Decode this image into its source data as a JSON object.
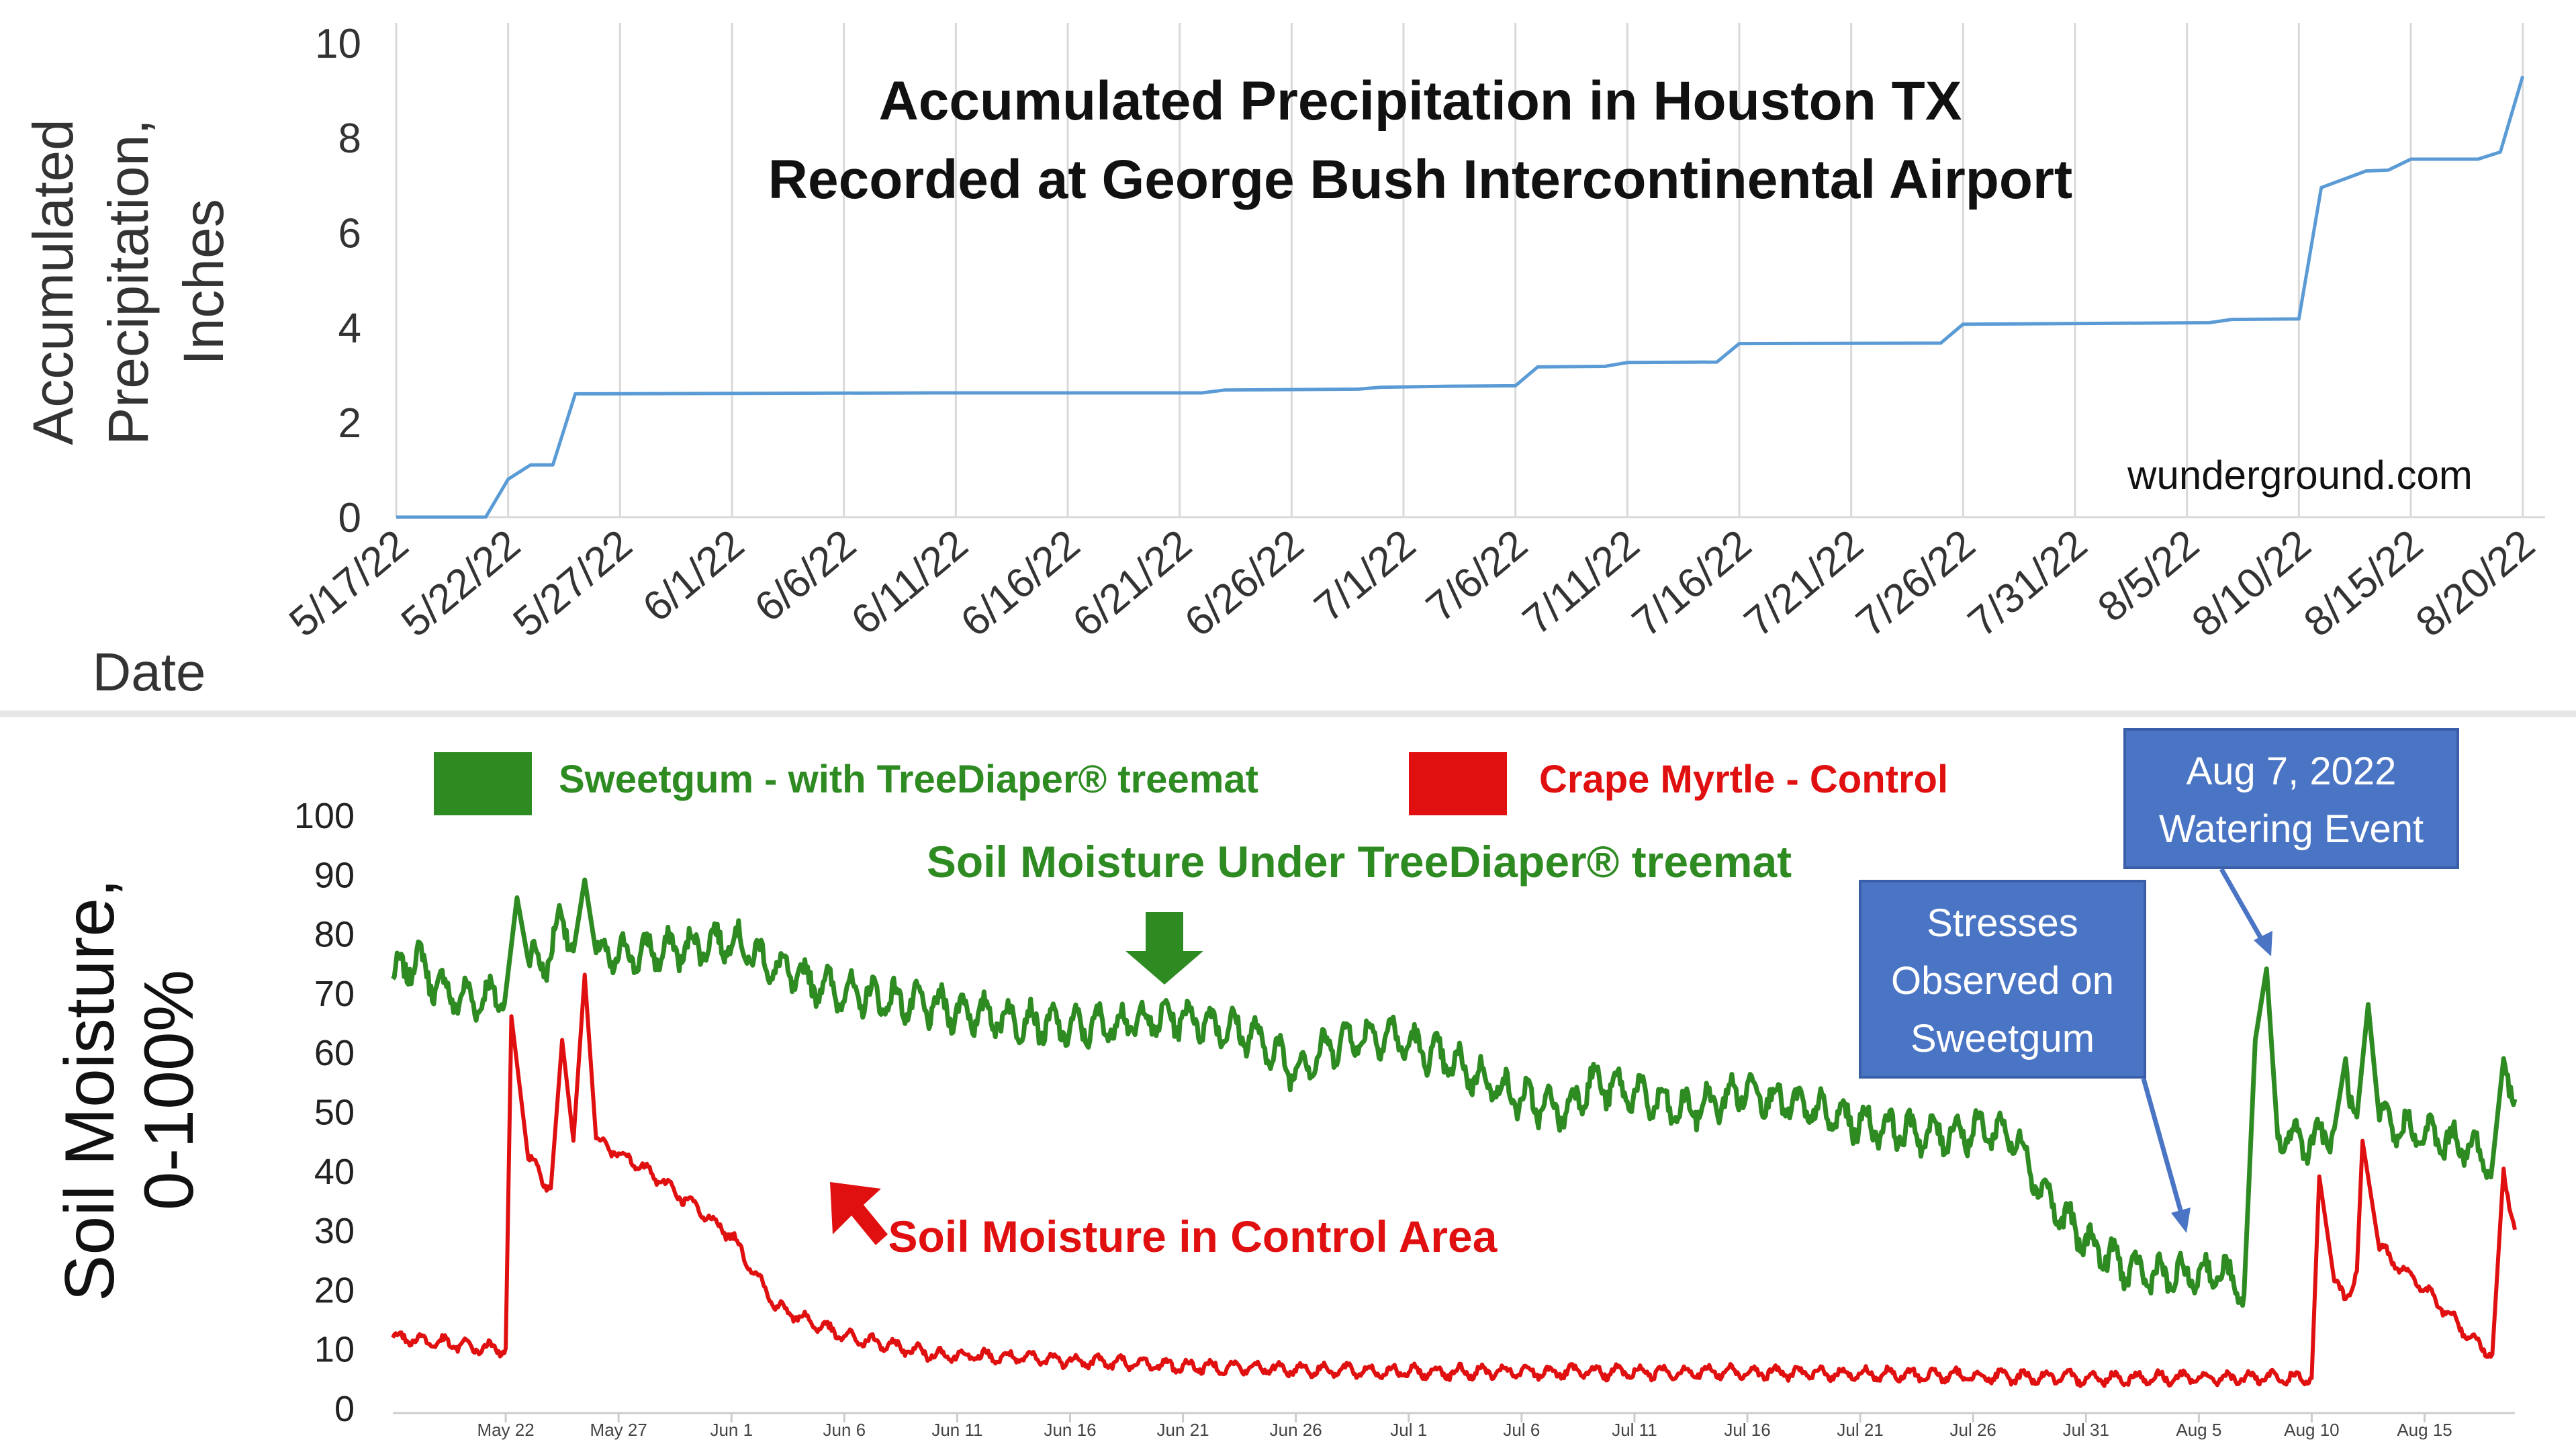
{
  "chart_data": [
    {
      "type": "line",
      "title_lines": [
        "Accumulated Precipitation in Houston TX",
        "Recorded at George Bush Intercontinental Airport"
      ],
      "ylabel_lines": [
        "Accumulated",
        "Precipitation,",
        "Inches"
      ],
      "xlabel": "Date",
      "source": "wunderground.com",
      "ylim": [
        0,
        10
      ],
      "yticks": [
        0,
        2,
        4,
        6,
        8,
        10
      ],
      "xlim": [
        "2022-05-17",
        "2022-08-21"
      ],
      "xtick_labels": [
        "5/17/22",
        "5/22/22",
        "5/27/22",
        "6/1/22",
        "6/6/22",
        "6/11/22",
        "6/16/22",
        "6/21/22",
        "6/26/22",
        "7/1/22",
        "7/6/22",
        "7/11/22",
        "7/16/22",
        "7/21/22",
        "7/26/22",
        "7/31/22",
        "8/5/22",
        "8/10/22",
        "8/15/22",
        "8/20/22"
      ],
      "grid": "vertical",
      "color": "#5b9bd5",
      "series": [
        {
          "points": [
            [
              "2022-05-17",
              0.0
            ],
            [
              "2022-05-21",
              0.0
            ],
            [
              "2022-05-22",
              0.8
            ],
            [
              "2022-05-23",
              1.1
            ],
            [
              "2022-05-24",
              1.1
            ],
            [
              "2022-05-25",
              2.6
            ],
            [
              "2022-06-10",
              2.62
            ],
            [
              "2022-06-22",
              2.62
            ],
            [
              "2022-06-23",
              2.68
            ],
            [
              "2022-06-29",
              2.7
            ],
            [
              "2022-06-30",
              2.74
            ],
            [
              "2022-07-03",
              2.76
            ],
            [
              "2022-07-06",
              2.77
            ],
            [
              "2022-07-07",
              3.17
            ],
            [
              "2022-07-10",
              3.18
            ],
            [
              "2022-07-11",
              3.26
            ],
            [
              "2022-07-15",
              3.27
            ],
            [
              "2022-07-16",
              3.66
            ],
            [
              "2022-07-25",
              3.67
            ],
            [
              "2022-07-26",
              4.07
            ],
            [
              "2022-08-06",
              4.1
            ],
            [
              "2022-08-07",
              4.17
            ],
            [
              "2022-08-10",
              4.18
            ],
            [
              "2022-08-11",
              6.95
            ],
            [
              "2022-08-13",
              7.3
            ],
            [
              "2022-08-14",
              7.32
            ],
            [
              "2022-08-15",
              7.55
            ],
            [
              "2022-08-18",
              7.55
            ],
            [
              "2022-08-19",
              7.7
            ],
            [
              "2022-08-20",
              9.3
            ]
          ]
        }
      ]
    },
    {
      "type": "line",
      "ylabel_lines": [
        "Soil Moisture,",
        "0-100%"
      ],
      "ylim": [
        0,
        100
      ],
      "yticks": [
        0,
        10,
        20,
        30,
        40,
        50,
        60,
        70,
        80,
        90,
        100
      ],
      "xlim": [
        "2022-05-17",
        "2022-08-19"
      ],
      "xtick_labels": [
        "May 22",
        "May 27",
        "Jun 1",
        "Jun 6",
        "Jun 11",
        "Jun 16",
        "Jun 21",
        "Jun 26",
        "Jul 1",
        "Jul 6",
        "Jul 11",
        "Jul 16",
        "Jul 21",
        "Jul 26",
        "Jul 31",
        "Aug 5",
        "Aug 10",
        "Aug 15"
      ],
      "legend_position": "top",
      "series": [
        {
          "name": "Sweetgum - with TreeDiaper® treemat",
          "color": "#2e8b22",
          "points": [
            [
              "2022-05-17",
              72
            ],
            [
              "2022-05-18",
              76
            ],
            [
              "2022-05-19",
              71
            ],
            [
              "2022-05-20",
              69
            ],
            [
              "2022-05-21",
              69
            ],
            [
              "2022-05-22",
              70
            ],
            [
              "2022-05-22T12",
              86
            ],
            [
              "2022-05-23",
              75
            ],
            [
              "2022-05-24",
              76
            ],
            [
              "2022-05-24T12",
              84
            ],
            [
              "2022-05-25",
              77
            ],
            [
              "2022-05-25T12",
              89
            ],
            [
              "2022-05-26",
              76
            ],
            [
              "2022-05-29",
              77
            ],
            [
              "2022-06-01",
              79
            ],
            [
              "2022-06-03",
              74
            ],
            [
              "2022-06-06",
              70
            ],
            [
              "2022-06-11",
              67
            ],
            [
              "2022-06-16",
              64
            ],
            [
              "2022-06-21",
              66
            ],
            [
              "2022-06-24",
              63
            ],
            [
              "2022-06-26",
              57
            ],
            [
              "2022-06-28",
              62
            ],
            [
              "2022-06-30",
              63
            ],
            [
              "2022-07-03",
              58
            ],
            [
              "2022-07-06",
              52
            ],
            [
              "2022-07-08",
              50
            ],
            [
              "2022-07-09",
              55
            ],
            [
              "2022-07-11",
              53
            ],
            [
              "2022-07-13",
              50
            ],
            [
              "2022-07-15",
              52
            ],
            [
              "2022-07-16",
              54
            ],
            [
              "2022-07-18",
              51
            ],
            [
              "2022-07-21",
              48
            ],
            [
              "2022-07-24",
              46
            ],
            [
              "2022-07-27",
              47
            ],
            [
              "2022-07-28",
              45
            ],
            [
              "2022-07-29",
              37
            ],
            [
              "2022-07-30",
              32
            ],
            [
              "2022-07-31",
              28
            ],
            [
              "2022-08-02",
              23
            ],
            [
              "2022-08-04",
              22
            ],
            [
              "2022-08-06",
              23
            ],
            [
              "2022-08-07",
              19
            ],
            [
              "2022-08-07T12",
              62
            ],
            [
              "2022-08-08",
              74
            ],
            [
              "2022-08-08T12",
              46
            ],
            [
              "2022-08-10",
              45
            ],
            [
              "2022-08-11",
              47
            ],
            [
              "2022-08-11T12",
              58
            ],
            [
              "2022-08-12",
              49
            ],
            [
              "2022-08-12T12",
              68
            ],
            [
              "2022-08-13",
              48
            ],
            [
              "2022-08-15",
              46
            ],
            [
              "2022-08-17",
              44
            ],
            [
              "2022-08-18",
              41
            ],
            [
              "2022-08-18T12",
              60
            ],
            [
              "2022-08-19",
              52
            ]
          ]
        },
        {
          "name": "Crape Myrtle - Control",
          "color": "#e01010",
          "points": [
            [
              "2022-05-17",
              12
            ],
            [
              "2022-05-19",
              11
            ],
            [
              "2022-05-21",
              10
            ],
            [
              "2022-05-22",
              10
            ],
            [
              "2022-05-22T06",
              66
            ],
            [
              "2022-05-23",
              42
            ],
            [
              "2022-05-24",
              37
            ],
            [
              "2022-05-24T12",
              62
            ],
            [
              "2022-05-25",
              45
            ],
            [
              "2022-05-25T12",
              73
            ],
            [
              "2022-05-26",
              45
            ],
            [
              "2022-05-27",
              43
            ],
            [
              "2022-05-29",
              38
            ],
            [
              "2022-06-01",
              29
            ],
            [
              "2022-06-03",
              17
            ],
            [
              "2022-06-06",
              12
            ],
            [
              "2022-06-10",
              9
            ],
            [
              "2022-06-16",
              8
            ],
            [
              "2022-06-21",
              7
            ],
            [
              "2022-07-01",
              6
            ],
            [
              "2022-07-16",
              6
            ],
            [
              "2022-07-31",
              5
            ],
            [
              "2022-08-10",
              5
            ],
            [
              "2022-08-10T08",
              39
            ],
            [
              "2022-08-11",
              21
            ],
            [
              "2022-08-11T12",
              18
            ],
            [
              "2022-08-12",
              23
            ],
            [
              "2022-08-12T06",
              45
            ],
            [
              "2022-08-13",
              27
            ],
            [
              "2022-08-15",
              20
            ],
            [
              "2022-08-17",
              12
            ],
            [
              "2022-08-18",
              9
            ],
            [
              "2022-08-18T12",
              40
            ],
            [
              "2022-08-19",
              30
            ]
          ]
        }
      ],
      "annotations": [
        {
          "text": "Soil Moisture Under TreeDiaper® treemat",
          "color": "#2e8b22"
        },
        {
          "text": "Soil Moisture in Control Area",
          "color": "#e01010"
        },
        {
          "text_lines": [
            "Stresses",
            "Observed on",
            "Sweetgum"
          ],
          "color": "#ffffff",
          "box": "#4a74c4"
        },
        {
          "text_lines": [
            "Aug 7, 2022",
            "Watering Event"
          ],
          "color": "#ffffff",
          "box": "#4a74c4"
        }
      ]
    }
  ]
}
